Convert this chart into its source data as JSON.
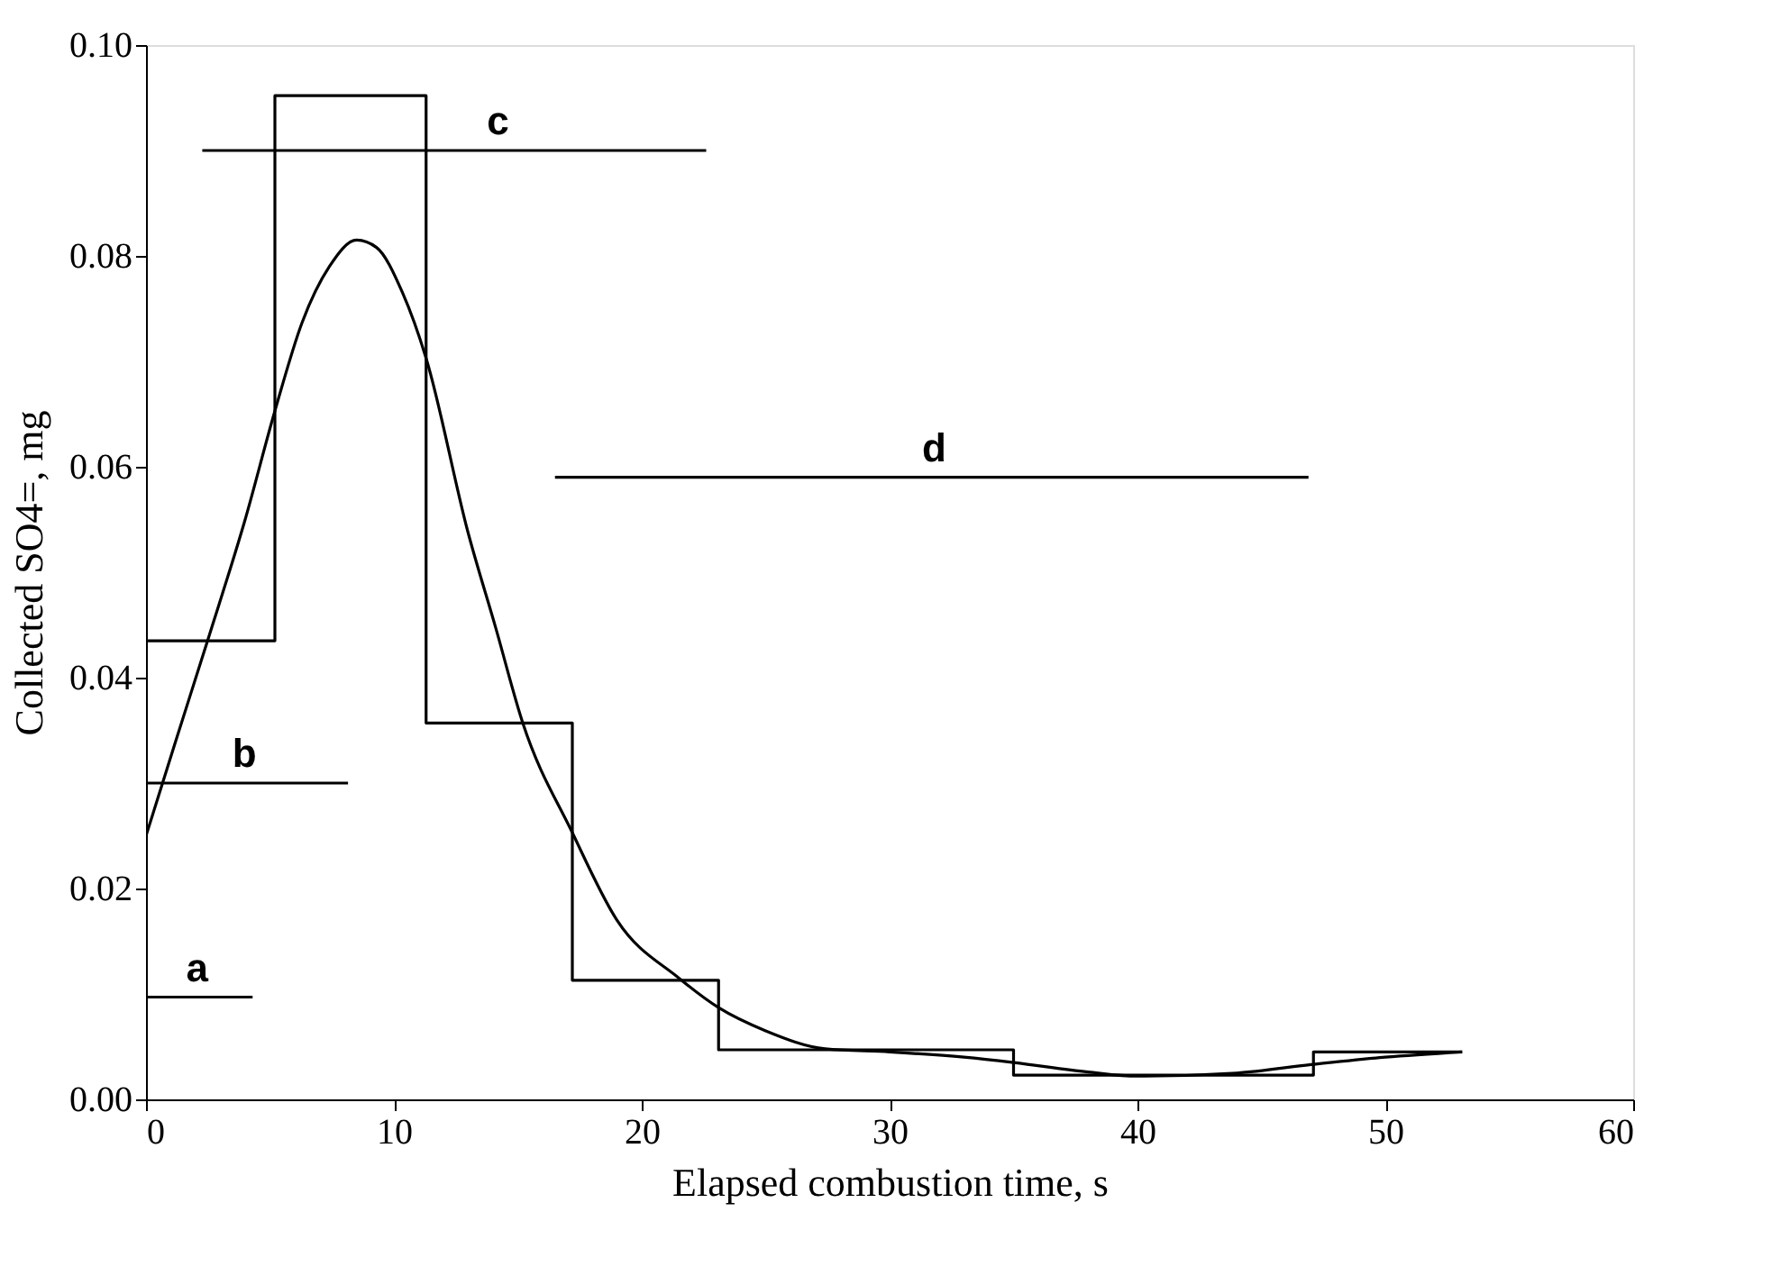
{
  "chart_data": {
    "type": "line",
    "xlabel": "Elapsed combustion time, s",
    "ylabel": "Collected SO4=, mg",
    "xlim": [
      0,
      60
    ],
    "xticks": [
      0,
      10,
      20,
      30,
      40,
      50,
      60
    ],
    "ylim": [
      0,
      0.1
    ],
    "yticks": [
      {
        "value": 0,
        "label": "0.00"
      },
      {
        "value": 0.02,
        "label": "0.02"
      },
      {
        "value": 0.04,
        "label": "0.04"
      },
      {
        "value": 0.06,
        "label": "0.06"
      },
      {
        "value": 0.08,
        "label": "0.08"
      },
      {
        "value": 0.1,
        "label": "0.10"
      }
    ],
    "grid": false,
    "series": [
      {
        "type": "step",
        "color": "#000000",
        "x": [
          0,
          5.2,
          11.3,
          17.2,
          23.1,
          35,
          47.1,
          53.1
        ],
        "values": [
          0.0435,
          0.0952,
          0.0357,
          0.0113,
          0.0047,
          0.0023,
          0.0045,
          0.0045
        ]
      },
      {
        "type": "line",
        "color": "#000000",
        "x": [
          0,
          1.2,
          2.55,
          4,
          5.2,
          6.3,
          7.4,
          8.5,
          9.3,
          10.35,
          11.3,
          13,
          14.1,
          15.2,
          17.2,
          19,
          21.5,
          23.1,
          25,
          27.4,
          30,
          33,
          35,
          38,
          40,
          44,
          47,
          50,
          53.1
        ],
        "values": [
          0.025,
          0.034,
          0.044,
          0.055,
          0.0653,
          0.0737,
          0.079,
          0.0815,
          0.0808,
          0.0765,
          0.0703,
          0.0537,
          0.0448,
          0.0357,
          0.0253,
          0.017,
          0.0115,
          0.0087,
          0.0065,
          0.0048,
          0.0045,
          0.004,
          0.0035,
          0.0026,
          0.0022,
          0.0025,
          0.0033,
          0.004,
          0.0045
        ]
      },
      {
        "color": "#000000",
        "x": [
          0,
          4.3
        ],
        "values": [
          0.0097,
          0.0097
        ]
      },
      {
        "color": "#000000",
        "x": [
          0,
          8.15
        ],
        "values": [
          0.03,
          0.03
        ]
      },
      {
        "color": "#000000",
        "x": [
          2.27,
          22.6
        ],
        "values": [
          0.09,
          0.09
        ]
      },
      {
        "color": "#000000",
        "x": [
          16.5,
          46.9
        ],
        "values": [
          0.059,
          0.059
        ]
      }
    ],
    "annotations": [
      {
        "text": "a",
        "x": 2.06,
        "y": 0.0097
      },
      {
        "text": "b",
        "x": 3.97,
        "y": 0.03
      },
      {
        "text": "c",
        "x": 14.2,
        "y": 0.09
      },
      {
        "text": "d",
        "x": 31.8,
        "y": 0.059
      }
    ]
  }
}
